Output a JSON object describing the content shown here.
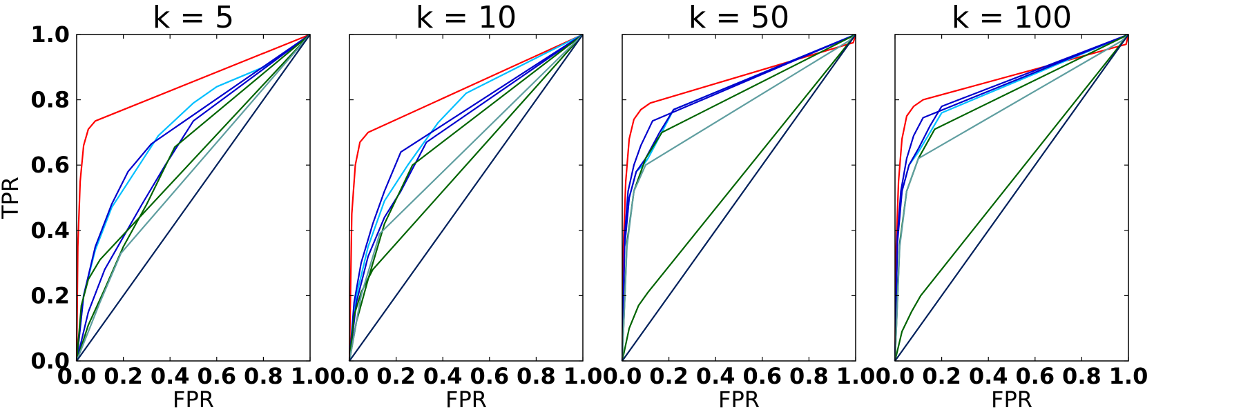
{
  "chart_data": [
    {
      "type": "line",
      "title": "k = 5",
      "xlabel": "FPR",
      "ylabel": "TPR",
      "xlim": [
        0,
        1
      ],
      "ylim": [
        0,
        1
      ],
      "xticks": [
        "0.0",
        "0.2",
        "0.4",
        "0.6",
        "0.8",
        "1.0"
      ],
      "yticks": [
        "0.0",
        "0.2",
        "0.4",
        "0.6",
        "0.8",
        "1.0"
      ],
      "grid": false,
      "series": [
        {
          "color": "#ff0000",
          "x": [
            0,
            0.005,
            0.015,
            0.03,
            0.05,
            0.08,
            1
          ],
          "y": [
            0,
            0.35,
            0.55,
            0.66,
            0.71,
            0.735,
            1
          ]
        },
        {
          "color": "#00bfff",
          "x": [
            0,
            0.03,
            0.08,
            0.15,
            0.25,
            0.35,
            0.5,
            0.6,
            0.8,
            1
          ],
          "y": [
            0,
            0.2,
            0.34,
            0.47,
            0.58,
            0.69,
            0.79,
            0.84,
            0.9,
            1
          ]
        },
        {
          "color": "#0000cd",
          "x": [
            0,
            0.03,
            0.08,
            0.15,
            0.22,
            0.32,
            1
          ],
          "y": [
            0,
            0.2,
            0.35,
            0.48,
            0.58,
            0.665,
            1
          ]
        },
        {
          "color": "#0000cd",
          "x": [
            0,
            0.05,
            0.12,
            0.2,
            0.28,
            0.38,
            0.5,
            1
          ],
          "y": [
            0,
            0.15,
            0.28,
            0.38,
            0.48,
            0.6,
            0.735,
            1
          ]
        },
        {
          "color": "#006400",
          "x": [
            0,
            0.02,
            0.05,
            0.1,
            1
          ],
          "y": [
            0,
            0.17,
            0.25,
            0.31,
            1
          ]
        },
        {
          "color": "#006400",
          "x": [
            0,
            0.05,
            0.12,
            0.2,
            0.3,
            0.42,
            1
          ],
          "y": [
            0,
            0.11,
            0.22,
            0.35,
            0.48,
            0.655,
            1
          ]
        },
        {
          "color": "#5f9ea0",
          "x": [
            0,
            0.1,
            0.19,
            1
          ],
          "y": [
            0,
            0.18,
            0.33,
            1
          ]
        },
        {
          "color": "#00205b",
          "x": [
            0,
            1
          ],
          "y": [
            0,
            1
          ]
        }
      ]
    },
    {
      "type": "line",
      "title": "k = 10",
      "xlabel": "FPR",
      "ylabel": "",
      "xlim": [
        0,
        1
      ],
      "ylim": [
        0,
        1
      ],
      "xticks": [
        "0.0",
        "0.2",
        "0.4",
        "0.6",
        "0.8",
        "1.0"
      ],
      "yticks": [],
      "grid": false,
      "series": [
        {
          "color": "#ff0000",
          "x": [
            0,
            0.01,
            0.025,
            0.045,
            0.08,
            1
          ],
          "y": [
            0,
            0.45,
            0.6,
            0.67,
            0.7,
            1
          ]
        },
        {
          "color": "#00bfff",
          "x": [
            0,
            0.03,
            0.08,
            0.15,
            0.25,
            0.38,
            0.5,
            1
          ],
          "y": [
            0,
            0.2,
            0.35,
            0.49,
            0.6,
            0.73,
            0.82,
            1
          ]
        },
        {
          "color": "#0000cd",
          "x": [
            0,
            0.02,
            0.05,
            0.1,
            0.15,
            0.22,
            1
          ],
          "y": [
            0,
            0.18,
            0.3,
            0.42,
            0.52,
            0.64,
            1
          ]
        },
        {
          "color": "#0000cd",
          "x": [
            0,
            0.03,
            0.08,
            0.15,
            0.22,
            0.33,
            1
          ],
          "y": [
            0,
            0.18,
            0.32,
            0.44,
            0.52,
            0.67,
            1
          ]
        },
        {
          "color": "#006400",
          "x": [
            0,
            0.02,
            0.05,
            0.1,
            1
          ],
          "y": [
            0,
            0.14,
            0.21,
            0.28,
            1
          ]
        },
        {
          "color": "#006400",
          "x": [
            0,
            0.03,
            0.08,
            0.15,
            0.27,
            1
          ],
          "y": [
            0,
            0.12,
            0.25,
            0.42,
            0.6,
            1
          ]
        },
        {
          "color": "#5f9ea0",
          "x": [
            0,
            0.05,
            0.13,
            1
          ],
          "y": [
            0,
            0.2,
            0.39,
            1
          ]
        },
        {
          "color": "#00205b",
          "x": [
            0,
            1
          ],
          "y": [
            0,
            1
          ]
        }
      ]
    },
    {
      "type": "line",
      "title": "k = 50",
      "xlabel": "FPR",
      "ylabel": "",
      "xlim": [
        0,
        1
      ],
      "ylim": [
        0,
        1
      ],
      "xticks": [
        "0.0",
        "0.2",
        "0.4",
        "0.6",
        "0.8",
        "1.0"
      ],
      "yticks": [],
      "grid": false,
      "series": [
        {
          "color": "#ff0000",
          "x": [
            0,
            0.005,
            0.015,
            0.03,
            0.05,
            0.08,
            0.12,
            0.99,
            1
          ],
          "y": [
            0,
            0.35,
            0.55,
            0.68,
            0.74,
            0.77,
            0.79,
            0.975,
            1
          ]
        },
        {
          "color": "#00bfff",
          "x": [
            0,
            0.01,
            0.03,
            0.06,
            0.09,
            0.11,
            0.14,
            0.22,
            1
          ],
          "y": [
            0,
            0.35,
            0.5,
            0.58,
            0.6,
            0.62,
            0.66,
            0.77,
            1
          ]
        },
        {
          "color": "#0000cd",
          "x": [
            0,
            0.01,
            0.025,
            0.05,
            0.08,
            0.13,
            1
          ],
          "y": [
            0,
            0.38,
            0.52,
            0.6,
            0.66,
            0.735,
            1
          ]
        },
        {
          "color": "#0000cd",
          "x": [
            0,
            0.01,
            0.03,
            0.06,
            0.1,
            0.16,
            0.22,
            1
          ],
          "y": [
            0,
            0.35,
            0.5,
            0.58,
            0.62,
            0.7,
            0.77,
            1
          ]
        },
        {
          "color": "#006400",
          "x": [
            0,
            0.03,
            0.07,
            0.11,
            1
          ],
          "y": [
            0,
            0.1,
            0.17,
            0.21,
            1
          ]
        },
        {
          "color": "#006400",
          "x": [
            0,
            0.02,
            0.05,
            0.1,
            0.17,
            1
          ],
          "y": [
            0,
            0.36,
            0.52,
            0.62,
            0.7,
            1
          ]
        },
        {
          "color": "#5f9ea0",
          "x": [
            0,
            0.02,
            0.05,
            0.1,
            0.97,
            1
          ],
          "y": [
            0,
            0.35,
            0.52,
            0.6,
            0.98,
            1
          ]
        },
        {
          "color": "#00205b",
          "x": [
            0,
            1
          ],
          "y": [
            0,
            1
          ]
        }
      ]
    },
    {
      "type": "line",
      "title": "k = 100",
      "xlabel": "FPR",
      "ylabel": "",
      "xlim": [
        0,
        1
      ],
      "ylim": [
        0,
        1
      ],
      "xticks": [
        "0.0",
        "0.2",
        "0.4",
        "0.6",
        "0.8",
        "1.0"
      ],
      "yticks": [],
      "grid": false,
      "series": [
        {
          "color": "#ff0000",
          "x": [
            0,
            0.005,
            0.015,
            0.03,
            0.05,
            0.08,
            0.12,
            0.99,
            1
          ],
          "y": [
            0,
            0.35,
            0.55,
            0.68,
            0.75,
            0.78,
            0.8,
            0.97,
            1
          ]
        },
        {
          "color": "#00bfff",
          "x": [
            0,
            0.01,
            0.03,
            0.06,
            0.1,
            0.15,
            0.2,
            1
          ],
          "y": [
            0,
            0.38,
            0.52,
            0.6,
            0.64,
            0.7,
            0.76,
            1
          ]
        },
        {
          "color": "#0000cd",
          "x": [
            0,
            0.01,
            0.025,
            0.05,
            0.08,
            0.12,
            1
          ],
          "y": [
            0,
            0.38,
            0.52,
            0.62,
            0.69,
            0.745,
            1
          ]
        },
        {
          "color": "#0000cd",
          "x": [
            0,
            0.01,
            0.03,
            0.06,
            0.1,
            0.15,
            0.2,
            1
          ],
          "y": [
            0,
            0.36,
            0.52,
            0.6,
            0.65,
            0.72,
            0.78,
            1
          ]
        },
        {
          "color": "#006400",
          "x": [
            0,
            0.03,
            0.07,
            0.11,
            1
          ],
          "y": [
            0,
            0.09,
            0.15,
            0.2,
            1
          ]
        },
        {
          "color": "#006400",
          "x": [
            0,
            0.02,
            0.05,
            0.1,
            0.17,
            1
          ],
          "y": [
            0,
            0.36,
            0.52,
            0.62,
            0.71,
            1
          ]
        },
        {
          "color": "#5f9ea0",
          "x": [
            0,
            0.02,
            0.05,
            0.1,
            0.97,
            1
          ],
          "y": [
            0,
            0.35,
            0.52,
            0.62,
            0.98,
            1
          ]
        },
        {
          "color": "#00205b",
          "x": [
            0,
            1
          ],
          "y": [
            0,
            1
          ]
        }
      ]
    }
  ]
}
